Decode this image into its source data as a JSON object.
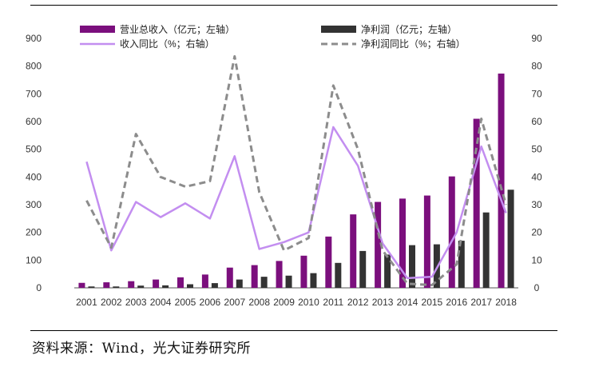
{
  "chart_data": {
    "type": "bar+line",
    "categories": [
      "2001",
      "2002",
      "2003",
      "2004",
      "2005",
      "2006",
      "2007",
      "2008",
      "2009",
      "2010",
      "2011",
      "2012",
      "2013",
      "2014",
      "2015",
      "2016",
      "2017",
      "2018"
    ],
    "series": [
      {
        "name": "营业总收入（亿元；左轴）",
        "type": "bar",
        "axis": "left",
        "color": "#7b0f7d",
        "values": [
          18,
          20,
          24,
          30,
          38,
          48,
          73,
          82,
          97,
          116,
          185,
          265,
          310,
          322,
          333,
          402,
          610,
          773
        ]
      },
      {
        "name": "净利润（亿元；左轴）",
        "type": "bar",
        "axis": "left",
        "color": "#333333",
        "values": [
          5,
          5,
          8,
          9,
          13,
          17,
          30,
          40,
          44,
          53,
          90,
          133,
          120,
          154,
          157,
          170,
          272,
          354
        ]
      },
      {
        "name": "收入同比（%；右轴）",
        "type": "line",
        "style": "solid",
        "axis": "right",
        "color": "#c38ef0",
        "values": [
          45.5,
          13.5,
          31,
          25.5,
          30.5,
          25,
          47.5,
          14,
          16.5,
          20,
          58,
          44,
          16,
          3.5,
          4,
          20,
          51,
          27
        ]
      },
      {
        "name": "净利润同比（%；右轴）",
        "type": "line",
        "style": "dashed",
        "axis": "right",
        "color": "#8c8c8c",
        "values": [
          31.5,
          14.5,
          55.5,
          40,
          36.5,
          38.5,
          83.5,
          34.5,
          13.5,
          18,
          73,
          50,
          13.5,
          1.5,
          1,
          8.5,
          61,
          30
        ]
      }
    ],
    "left_axis": {
      "min": 0,
      "max": 900,
      "ticks": [
        0,
        100,
        200,
        300,
        400,
        500,
        600,
        700,
        800,
        900
      ]
    },
    "right_axis": {
      "min": 0,
      "max": 90,
      "ticks": [
        0,
        10,
        20,
        30,
        40,
        50,
        60,
        70,
        80,
        90
      ]
    },
    "legend_position": "top"
  },
  "source_text": "资料来源：Wind，光大证券研究所"
}
